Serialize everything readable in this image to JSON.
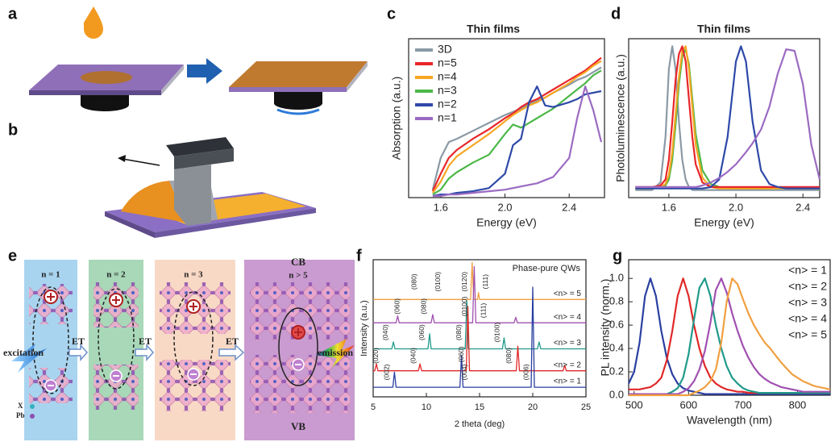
{
  "panel_labels": [
    "a",
    "b",
    "c",
    "d",
    "e",
    "f",
    "g"
  ],
  "diagram_e": {
    "layer_labels": [
      "n = 1",
      "n = 2",
      "n = 3",
      "n > 5"
    ],
    "band_top": "CB",
    "band_bottom": "VB",
    "input": "excitation",
    "transfer_labels": [
      "ET",
      "ET",
      "ET"
    ],
    "output": "emission",
    "atom_x": "X",
    "atom_pb": "Pb"
  },
  "chart_data": [
    {
      "type": "line",
      "title": "Thin films",
      "xlabel": "Energy (eV)",
      "ylabel": "Absorption (a.u.)",
      "xlim": [
        1.4,
        2.62
      ],
      "ylim": [
        0,
        1
      ],
      "xticks": [
        1.6,
        {
          "value": 2,
          "label": "2.0"
        },
        2.4
      ],
      "legend": "upper left",
      "legend_swatch": true,
      "x": [
        1.55,
        1.6,
        1.65,
        1.7,
        1.8,
        1.9,
        2.0,
        2.05,
        2.1,
        2.15,
        2.2,
        2.25,
        2.3,
        2.4,
        2.45,
        2.5,
        2.55,
        2.6
      ],
      "series": [
        {
          "name": "3D",
          "color": "#8a9aa6",
          "values": [
            0.05,
            0.25,
            0.35,
            0.37,
            0.42,
            0.47,
            0.52,
            0.54,
            0.56,
            0.59,
            0.61,
            0.63,
            0.66,
            0.71,
            0.74,
            0.76,
            0.79,
            0.82
          ]
        },
        {
          "name": "n=5",
          "color": "#e8262a",
          "values": [
            0.04,
            0.15,
            0.25,
            0.3,
            0.37,
            0.43,
            0.5,
            0.53,
            0.57,
            0.6,
            0.62,
            0.65,
            0.68,
            0.74,
            0.77,
            0.8,
            0.84,
            0.88
          ]
        },
        {
          "name": "n=4",
          "color": "#f6a623",
          "values": [
            0.03,
            0.1,
            0.2,
            0.26,
            0.33,
            0.4,
            0.48,
            0.52,
            0.55,
            0.58,
            0.6,
            0.63,
            0.66,
            0.72,
            0.76,
            0.79,
            0.83,
            0.86
          ]
        },
        {
          "name": "n=3",
          "color": "#4cb848",
          "values": [
            0.02,
            0.05,
            0.12,
            0.16,
            0.22,
            0.27,
            0.4,
            0.46,
            0.44,
            0.47,
            0.5,
            0.53,
            0.56,
            0.64,
            0.68,
            0.72,
            0.77,
            0.8
          ]
        },
        {
          "name": "n=2",
          "color": "#2e49a8",
          "values": [
            0.01,
            0.02,
            0.02,
            0.03,
            0.04,
            0.06,
            0.15,
            0.33,
            0.37,
            0.6,
            0.7,
            0.58,
            0.57,
            0.6,
            0.62,
            0.65,
            0.66,
            0.67
          ]
        },
        {
          "name": "n=1",
          "color": "#9b6bc2",
          "values": [
            0.01,
            0.01,
            0.02,
            0.02,
            0.03,
            0.04,
            0.05,
            0.06,
            0.07,
            0.08,
            0.09,
            0.11,
            0.13,
            0.25,
            0.5,
            0.7,
            0.55,
            0.35
          ]
        }
      ]
    },
    {
      "type": "line",
      "title": "Thin films",
      "xlabel": "Energy (eV)",
      "ylabel": "Photoluminescence (a.u.)",
      "xlim": [
        1.36,
        2.5
      ],
      "ylim": [
        0,
        1.05
      ],
      "xticks": [
        1.6,
        {
          "value": 2,
          "label": "2.0"
        },
        2.4
      ],
      "x": [
        1.4,
        1.5,
        1.55,
        1.58,
        1.6,
        1.62,
        1.64,
        1.66,
        1.68,
        1.7,
        1.72,
        1.74,
        1.76,
        1.8,
        1.85,
        1.9,
        1.95,
        2.0,
        2.03,
        2.06,
        2.1,
        2.15,
        2.2,
        2.25,
        2.3,
        2.35,
        2.4,
        2.45,
        2.5
      ],
      "series": [
        {
          "color": "#8a9aa6",
          "values": [
            0.05,
            0.05,
            0.1,
            0.4,
            0.85,
            1.0,
            0.85,
            0.5,
            0.25,
            0.12,
            0.07,
            0.05,
            0.05,
            0.05,
            0.05,
            0.05,
            0.05,
            0.05,
            0.05,
            0.05,
            0.05,
            0.05,
            0.05,
            0.05,
            0.05,
            0.05,
            0.05,
            0.05,
            0.05
          ]
        },
        {
          "color": "#4cb848",
          "values": [
            0.06,
            0.06,
            0.07,
            0.08,
            0.12,
            0.25,
            0.48,
            0.75,
            0.93,
            0.98,
            0.88,
            0.65,
            0.42,
            0.18,
            0.09,
            0.07,
            0.06,
            0.06,
            0.06,
            0.06,
            0.06,
            0.06,
            0.06,
            0.06,
            0.06,
            0.06,
            0.06,
            0.06,
            0.06
          ]
        },
        {
          "color": "#f6a623",
          "values": [
            0.06,
            0.06,
            0.07,
            0.09,
            0.15,
            0.3,
            0.55,
            0.8,
            0.97,
            1.0,
            0.85,
            0.6,
            0.35,
            0.13,
            0.07,
            0.06,
            0.06,
            0.06,
            0.06,
            0.06,
            0.06,
            0.06,
            0.06,
            0.06,
            0.06,
            0.06,
            0.06,
            0.06,
            0.06
          ]
        },
        {
          "color": "#e8262a",
          "values": [
            0.07,
            0.07,
            0.08,
            0.12,
            0.25,
            0.5,
            0.78,
            0.95,
            1.0,
            0.9,
            0.65,
            0.4,
            0.22,
            0.1,
            0.07,
            0.07,
            0.07,
            0.07,
            0.07,
            0.07,
            0.07,
            0.07,
            0.07,
            0.07,
            0.07,
            0.07,
            0.07,
            0.07,
            0.07
          ]
        },
        {
          "color": "#2e49a8",
          "values": [
            0.06,
            0.06,
            0.06,
            0.06,
            0.06,
            0.06,
            0.06,
            0.06,
            0.06,
            0.06,
            0.06,
            0.06,
            0.06,
            0.06,
            0.07,
            0.12,
            0.4,
            0.9,
            1.0,
            0.9,
            0.5,
            0.18,
            0.09,
            0.07,
            0.06,
            0.06,
            0.06,
            0.06,
            0.06
          ]
        },
        {
          "color": "#9b6bc2",
          "values": [
            0.07,
            0.07,
            0.07,
            0.07,
            0.07,
            0.07,
            0.07,
            0.07,
            0.07,
            0.07,
            0.07,
            0.07,
            0.07,
            0.08,
            0.1,
            0.13,
            0.17,
            0.22,
            0.26,
            0.3,
            0.36,
            0.45,
            0.6,
            0.82,
            0.98,
            0.97,
            0.75,
            0.35,
            0.12
          ]
        }
      ]
    },
    {
      "type": "line",
      "title": "Phase-pure QWs",
      "xlabel": "2 theta (deg)",
      "ylabel": "Intensity (a.u.)",
      "xlim": [
        5,
        25
      ],
      "ylim": [
        0,
        10
      ],
      "xticks": [
        5,
        10,
        15,
        20,
        25
      ],
      "legend": "inline",
      "legend_swatch": false,
      "series": [
        {
          "name": "<n> = 5",
          "color": "#f0a040",
          "x": [
            5,
            14.15,
            14.3,
            14.45,
            14.8,
            14.9,
            15.0,
            25
          ],
          "values": [
            7.1,
            7.1,
            9.8,
            7.1,
            7.1,
            7.6,
            7.1,
            7.1
          ]
        },
        {
          "name": "<n> = 4",
          "color": "#a050b0",
          "x": [
            5,
            7.15,
            7.3,
            7.45,
            10.45,
            10.6,
            10.75,
            14.35,
            14.5,
            14.65,
            18.25,
            18.4,
            18.55,
            25
          ],
          "values": [
            5.4,
            5.4,
            5.9,
            5.4,
            5.4,
            6.0,
            5.4,
            5.4,
            9.5,
            5.4,
            5.4,
            5.8,
            5.4,
            5.4
          ]
        },
        {
          "name": "<n> = 3",
          "color": "#1f9a8a",
          "x": [
            5,
            6.75,
            6.9,
            7.05,
            10.15,
            10.3,
            10.45,
            13.65,
            13.8,
            13.95,
            17.15,
            17.3,
            17.45,
            20.45,
            20.6,
            20.75,
            25
          ],
          "values": [
            3.5,
            3.5,
            4.0,
            3.5,
            3.5,
            4.6,
            3.5,
            3.5,
            7.0,
            3.5,
            3.5,
            4.3,
            3.5,
            3.5,
            4.0,
            3.5,
            3.5
          ]
        },
        {
          "name": "<n> = 2",
          "color": "#e02828",
          "x": [
            5,
            5.15,
            5.3,
            5.45,
            9.25,
            9.4,
            9.55,
            13.75,
            13.9,
            14.05,
            18.45,
            18.6,
            18.75,
            22.85,
            23.0,
            23.15,
            25
          ],
          "values": [
            1.9,
            1.9,
            2.4,
            1.9,
            1.9,
            2.4,
            1.9,
            1.9,
            6.6,
            1.9,
            1.9,
            3.7,
            1.9,
            1.9,
            2.3,
            1.9,
            1.9
          ]
        },
        {
          "name": "<n> = 1",
          "color": "#2a3fa0",
          "x": [
            5,
            6.85,
            7.0,
            7.15,
            13.15,
            13.3,
            13.45,
            19.85,
            20.0,
            20.15,
            25
          ],
          "values": [
            0.7,
            0.7,
            1.8,
            0.7,
            0.7,
            3.0,
            0.7,
            0.7,
            8.0,
            0.7,
            0.7
          ]
        }
      ],
      "annotations": [
        {
          "text": "(080)",
          "x": 8.9,
          "y": 8.4
        },
        {
          "text": "(0100)",
          "x": 11.1,
          "y": 8.4
        },
        {
          "text": "(0120)",
          "x": 13.6,
          "y": 8.4
        },
        {
          "text": "(111)",
          "x": 15.6,
          "y": 8.4
        },
        {
          "text": "(060)",
          "x": 7.3,
          "y": 6.6
        },
        {
          "text": "(080)",
          "x": 9.8,
          "y": 6.6
        },
        {
          "text": "(0100)",
          "x": 13.6,
          "y": 6.6
        },
        {
          "text": "(111)",
          "x": 15.4,
          "y": 6.3
        },
        {
          "text": "(040)",
          "x": 6.2,
          "y": 4.7
        },
        {
          "text": "(060)",
          "x": 9.6,
          "y": 4.7
        },
        {
          "text": "(080)",
          "x": 13.1,
          "y": 4.7
        },
        {
          "text": "(0100)",
          "x": 16.7,
          "y": 4.7
        },
        {
          "text": "(020)",
          "x": 5.3,
          "y": 3.0
        },
        {
          "text": "(040)",
          "x": 8.8,
          "y": 3.0
        },
        {
          "text": "(060)",
          "x": 13.3,
          "y": 3.1
        },
        {
          "text": "(080)",
          "x": 17.8,
          "y": 3.0
        },
        {
          "text": "(002)",
          "x": 6.3,
          "y": 1.8
        },
        {
          "text": "(004)",
          "x": 13.6,
          "y": 1.8
        },
        {
          "text": "(006)",
          "x": 19.4,
          "y": 1.8
        }
      ]
    },
    {
      "type": "line",
      "xlabel": "Wavelength (nm)",
      "ylabel": "PL intensity (norm.)",
      "xlim": [
        490,
        860
      ],
      "ylim": [
        0,
        1.16
      ],
      "xticks": [
        500,
        600,
        700,
        800
      ],
      "yticks": [
        {
          "value": 0,
          "label": "0.0"
        },
        0.2,
        0.4,
        0.6,
        0.8,
        {
          "value": 1,
          "label": "1.0"
        }
      ],
      "legend": "upper right",
      "legend_swatch": false,
      "x": [
        490,
        500,
        510,
        520,
        530,
        540,
        550,
        560,
        570,
        580,
        590,
        600,
        610,
        620,
        630,
        640,
        650,
        660,
        670,
        680,
        690,
        700,
        710,
        720,
        730,
        740,
        750,
        760,
        770,
        780,
        790,
        800,
        810,
        820,
        830,
        840,
        850,
        860
      ],
      "series": [
        {
          "name": "<n> = 1",
          "color": "#2a3fa0",
          "values": [
            0.1,
            0.2,
            0.45,
            0.85,
            1.0,
            0.85,
            0.55,
            0.32,
            0.18,
            0.1,
            0.06,
            0.04,
            0.03,
            0.02,
            0.01,
            0.01,
            0.01,
            0.01,
            0.01,
            0.01,
            0.01,
            0.01,
            0.01,
            0.01,
            0.01,
            0.01,
            0.01,
            0.01,
            0.01,
            0.01,
            0.01,
            0.01,
            0.01,
            0.01,
            0.01,
            0.01,
            0.01,
            0.01
          ]
        },
        {
          "name": "<n> = 2",
          "color": "#e02828",
          "values": [
            0.05,
            0.05,
            0.05,
            0.06,
            0.07,
            0.1,
            0.15,
            0.3,
            0.55,
            0.85,
            1.0,
            0.85,
            0.6,
            0.4,
            0.25,
            0.15,
            0.1,
            0.07,
            0.05,
            0.04,
            0.03,
            0.03,
            0.02,
            0.02,
            0.02,
            0.02,
            0.02,
            0.02,
            0.02,
            0.02,
            0.02,
            0.02,
            0.02,
            0.02,
            0.02,
            0.02,
            0.02,
            0.02
          ]
        },
        {
          "name": "<n> = 3",
          "color": "#1f9a8a",
          "values": [
            0.01,
            0.01,
            0.01,
            0.01,
            0.01,
            0.01,
            0.01,
            0.01,
            0.03,
            0.06,
            0.15,
            0.35,
            0.65,
            0.92,
            1.0,
            0.85,
            0.6,
            0.4,
            0.25,
            0.15,
            0.1,
            0.06,
            0.04,
            0.03,
            0.02,
            0.02,
            0.02,
            0.02,
            0.02,
            0.02,
            0.02,
            0.02,
            0.02,
            0.02,
            0.02,
            0.02,
            0.02,
            0.02
          ]
        },
        {
          "name": "<n> = 4",
          "color": "#a050b0",
          "values": [
            0.01,
            0.01,
            0.01,
            0.01,
            0.01,
            0.01,
            0.01,
            0.01,
            0.01,
            0.01,
            0.03,
            0.06,
            0.12,
            0.22,
            0.38,
            0.62,
            0.9,
            1.0,
            0.88,
            0.7,
            0.55,
            0.42,
            0.32,
            0.24,
            0.18,
            0.14,
            0.11,
            0.09,
            0.07,
            0.06,
            0.05,
            0.04,
            0.03,
            0.03,
            0.03,
            0.03,
            0.03,
            0.03
          ]
        },
        {
          "name": "<n> = 5",
          "color": "#f0a040",
          "values": [
            0,
            0,
            0,
            0,
            0,
            0,
            0,
            0,
            0,
            0,
            0,
            0,
            0.02,
            0.04,
            0.07,
            0.12,
            0.22,
            0.45,
            0.8,
            1.0,
            0.95,
            0.82,
            0.7,
            0.6,
            0.52,
            0.45,
            0.4,
            0.34,
            0.28,
            0.23,
            0.18,
            0.15,
            0.12,
            0.1,
            0.08,
            0.07,
            0.06,
            0.05
          ]
        }
      ]
    }
  ]
}
